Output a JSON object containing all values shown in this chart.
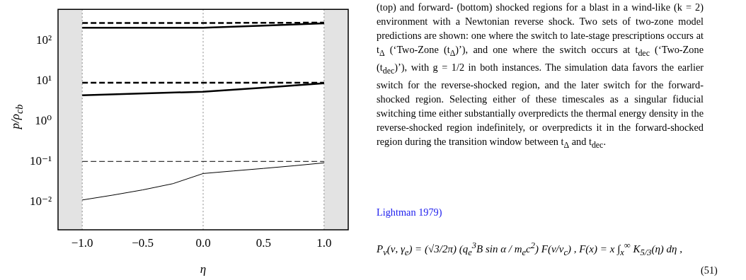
{
  "chart_data": {
    "type": "line",
    "xlabel": "η",
    "ylabel": "p/ρ$_{cb}$",
    "log": "y",
    "grid": false,
    "legend": false,
    "marker": "none",
    "xlim": [
      -1.2,
      1.2
    ],
    "xticks": [
      {
        "value": -1,
        "label": "−1.0"
      },
      {
        "value": -0.5,
        "label": "−0.5"
      },
      {
        "value": 0,
        "label": "0.0"
      },
      {
        "value": 0.5,
        "label": "0.5"
      },
      {
        "value": 1,
        "label": "1.0"
      }
    ],
    "ylim": [
      0.002,
      600
    ],
    "yticks": [
      {
        "value": 0.01,
        "label": "10⁻²"
      },
      {
        "value": 0.1,
        "label": "10⁻¹"
      },
      {
        "value": 1,
        "label": "10⁰"
      },
      {
        "value": 10,
        "label": "10¹"
      },
      {
        "value": 100,
        "label": "10²"
      }
    ],
    "series": [
      {
        "color": "#000000",
        "line_style": "dashed",
        "x": [
          -1,
          0,
          1
        ],
        "values": [
          275,
          275,
          280
        ]
      },
      {
        "color": "#000000",
        "line_style": "solid",
        "x": [
          -1,
          0,
          0.5,
          1
        ],
        "values": [
          210,
          210,
          235,
          270
        ]
      },
      {
        "color": "#000000",
        "line_style": "dashed",
        "x": [
          -1,
          0,
          1
        ],
        "values": [
          9,
          9,
          9
        ]
      },
      {
        "color": "#000000",
        "line_style": "solid",
        "x": [
          -1,
          0,
          0.5,
          1
        ],
        "values": [
          4.4,
          5.4,
          6.8,
          8.7
        ]
      },
      {
        "color": "#000000",
        "line_style": "dashed",
        "x": [
          -1,
          0,
          1
        ],
        "values": [
          0.1,
          0.1,
          0.1
        ]
      },
      {
        "color": "#000000",
        "line_style": "solid",
        "x": [
          -1,
          -0.75,
          -0.5,
          -0.25,
          0,
          0.25,
          0.5,
          0.75,
          1
        ],
        "values": [
          0.011,
          0.0145,
          0.0196,
          0.028,
          0.05,
          0.058,
          0.067,
          0.078,
          0.092
        ]
      }
    ],
    "bands": [
      {
        "axis": "x",
        "from": -1.2,
        "to": -1,
        "color": "#e3e3e3"
      },
      {
        "axis": "x",
        "from": 1,
        "to": 1.2,
        "color": "#e3e3e3"
      }
    ],
    "ref_lines": [
      {
        "axis": "x",
        "value": -1,
        "line_style": "dotted",
        "color": "#888888"
      },
      {
        "axis": "x",
        "value": 0,
        "line_style": "dotted",
        "color": "#888888"
      },
      {
        "axis": "x",
        "value": 1,
        "line_style": "dotted",
        "color": "#888888"
      }
    ],
    "annotations": [
      "(top) and forward- (bottom) shocked regions for a blast in a wind-like (k = 2) environment with a Newtonian reverse shock. Two sets of two-zone model predictions are shown: one where the switch to late-stage prescriptions occurs at t$_{Δ}$ (‘Two-Zone (t$_{Δ}$)’), and one where the switch occurs at t$_{dec}$ (‘Two-Zone (t$_{dec}$)’), with g = 1/2 in both instances. The simulation data favors the earlier switch for the reverse-shocked region, and the later switch for the forward-shocked region. Selecting either of these timescales as a singular fiducial switching time either substantially overpredicts the thermal energy density in the reverse-shocked region indefinitely, or overpredicts it in the forward-shocked region during the transition window between t$_{Δ}$ and t$_{dec}$.",
      "Lightman 1979)",
      "P$_{ν}$(ν, γ$_{e}$) = (√3/2π) (q$_{e}$$^{3}$B sin α / m$_{e}$c$^{2}$) F(ν/ν$_{c}$) ,     F(x) = x ∫$_{x}$$^{∞}$ K$_{5/3}$(η) dη ,",
      "(51)"
    ]
  }
}
